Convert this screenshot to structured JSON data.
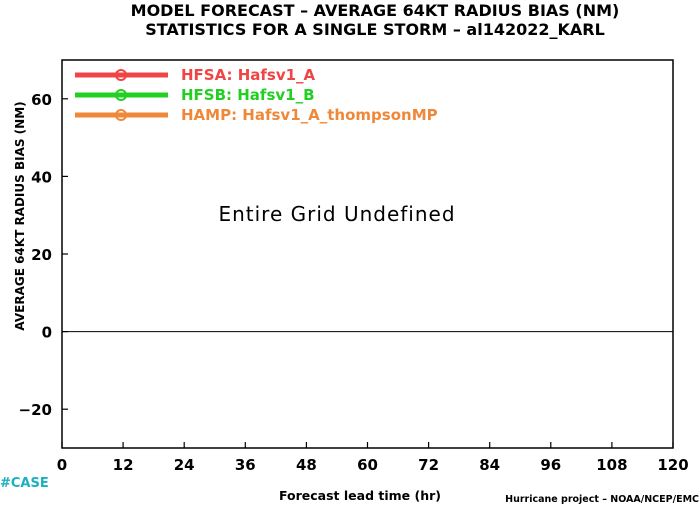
{
  "chart_data": {
    "type": "line",
    "title": "MODEL FORECAST – AVERAGE 64KT RADIUS BIAS (NM)",
    "subtitle": "STATISTICS FOR A SINGLE STORM – al142022_KARL",
    "xlabel": "Forecast lead time (hr)",
    "ylabel": "AVERAGE 64KT RADIUS BIAS (NM)",
    "xlim": [
      0,
      120
    ],
    "ylim": [
      -30,
      70
    ],
    "xticks": [
      0,
      12,
      24,
      36,
      48,
      60,
      72,
      84,
      96,
      108,
      120
    ],
    "yticks": [
      -20,
      0,
      20,
      40,
      60
    ],
    "zero_line": 0,
    "annotation": "Entire Grid Undefined",
    "legend_position": "top-left",
    "series": [
      {
        "name": "HFSA: Hafsv1_A",
        "color": "#f04545",
        "x": [],
        "values": []
      },
      {
        "name": "HFSB: Hafsv1_B",
        "color": "#22d022",
        "x": [],
        "values": []
      },
      {
        "name": "HAMP: Hafsv1_A_thompsonMP",
        "color": "#f0883a",
        "x": [],
        "values": []
      }
    ]
  },
  "footer": {
    "case_label": "#CASE",
    "credit": "Hurricane project – NOAA/NCEP/EMC"
  }
}
